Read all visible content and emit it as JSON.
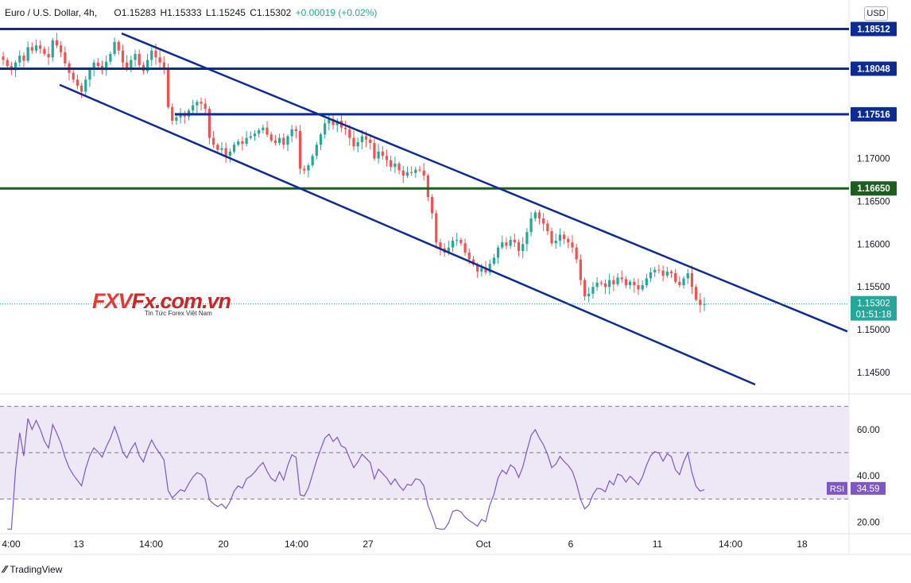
{
  "header": {
    "symbol": "Euro / U.S. Dollar, 4h,",
    "open": "O1.15283",
    "high": "H1.15333",
    "low": "L1.15245",
    "close": "C1.15302",
    "change": "+0.00019 (+0.02%)"
  },
  "currency_label": "USD",
  "watermark": {
    "brand": "FXVFx.com.vn",
    "tagline": "Tin Tức Forex Việt Nam"
  },
  "footer": {
    "brand": "TradingView"
  },
  "colors": {
    "up": "#26a69a",
    "down": "#ef5350",
    "level": "#0d2c91",
    "support": "#1b5e20",
    "channel": "#0d2c91",
    "rsi": "#7e57c2",
    "rsi_band": "#ede7f6"
  },
  "chart_data": [
    {
      "type": "candlestick",
      "title": "Euro / U.S. Dollar, 4h",
      "x_tick_labels": [
        "4:00",
        "13",
        "14:00",
        "20",
        "14:00",
        "27",
        "Oct",
        "6",
        "11",
        "14:00",
        "18"
      ],
      "y_tick_labels": [
        "1.14500",
        "1.15000",
        "1.15500",
        "1.16000",
        "1.16500",
        "1.17000"
      ],
      "ylim": [
        1.1425,
        1.1885
      ],
      "horizontal_levels": [
        {
          "value": 1.18512,
          "label": "1.18512",
          "color": "#0d2c91"
        },
        {
          "value": 1.18048,
          "label": "1.18048",
          "color": "#0d2c91"
        },
        {
          "value": 1.17516,
          "label": "1.17516",
          "color": "#0d2c91"
        },
        {
          "value": 1.1665,
          "label": "1.16650",
          "color": "#1b5e20"
        }
      ],
      "current_price": {
        "value": 1.15302,
        "label": "1.15302",
        "countdown": "01:51:18"
      },
      "channel_lines": [
        {
          "points": [
            [
              153,
              1.1846
            ],
            [
              1066,
              1.1498
            ]
          ]
        },
        {
          "points": [
            [
              75,
              1.1786
            ],
            [
              950,
              1.1436
            ]
          ]
        }
      ],
      "closes": [
        1.1815,
        1.1808,
        1.1803,
        1.1812,
        1.182,
        1.1814,
        1.183,
        1.1826,
        1.1832,
        1.1828,
        1.1822,
        1.1818,
        1.1838,
        1.1832,
        1.1824,
        1.1811,
        1.18,
        1.1792,
        1.1785,
        1.1778,
        1.1792,
        1.1804,
        1.1812,
        1.1808,
        1.1803,
        1.1813,
        1.1822,
        1.1836,
        1.1826,
        1.1812,
        1.1806,
        1.1815,
        1.1822,
        1.1809,
        1.1802,
        1.1815,
        1.1826,
        1.1818,
        1.1812,
        1.1805,
        1.176,
        1.1744,
        1.1748,
        1.1752,
        1.1749,
        1.1756,
        1.1762,
        1.1766,
        1.1764,
        1.1758,
        1.1724,
        1.1716,
        1.171,
        1.1712,
        1.1703,
        1.1708,
        1.1716,
        1.172,
        1.1717,
        1.1724,
        1.1726,
        1.1729,
        1.1733,
        1.1736,
        1.1728,
        1.1721,
        1.1718,
        1.1724,
        1.1716,
        1.1726,
        1.1734,
        1.1732,
        1.1688,
        1.1686,
        1.1692,
        1.1703,
        1.1716,
        1.1728,
        1.1741,
        1.1746,
        1.1739,
        1.1744,
        1.1736,
        1.1734,
        1.1724,
        1.1714,
        1.1719,
        1.1726,
        1.1722,
        1.1718,
        1.17,
        1.1708,
        1.1703,
        1.1698,
        1.169,
        1.1694,
        1.1686,
        1.168,
        1.1684,
        1.1683,
        1.1687,
        1.1686,
        1.168,
        1.1655,
        1.1636,
        1.1602,
        1.1595,
        1.159,
        1.1596,
        1.1604,
        1.1605,
        1.1601,
        1.159,
        1.1582,
        1.1576,
        1.1568,
        1.1572,
        1.1567,
        1.1577,
        1.1584,
        1.1596,
        1.1602,
        1.1598,
        1.1605,
        1.1602,
        1.1592,
        1.16,
        1.1614,
        1.163,
        1.1637,
        1.163,
        1.1624,
        1.1615,
        1.1601,
        1.1604,
        1.1611,
        1.1606,
        1.1602,
        1.1596,
        1.1582,
        1.1558,
        1.1539,
        1.1542,
        1.155,
        1.1555,
        1.1554,
        1.155,
        1.1558,
        1.1553,
        1.1561,
        1.1559,
        1.1552,
        1.1556,
        1.1552,
        1.1547,
        1.1552,
        1.156,
        1.1567,
        1.157,
        1.1569,
        1.1563,
        1.1568,
        1.1566,
        1.1556,
        1.1552,
        1.156,
        1.1566,
        1.155,
        1.1535,
        1.1529,
        1.153
      ],
      "rsi": {
        "label": "RSI",
        "value": "34.59",
        "levels": [
          70,
          50,
          30
        ],
        "y_tick_labels": [
          "20.00",
          "40.00",
          "60.00"
        ],
        "ylim": [
          15,
          75
        ]
      }
    }
  ]
}
